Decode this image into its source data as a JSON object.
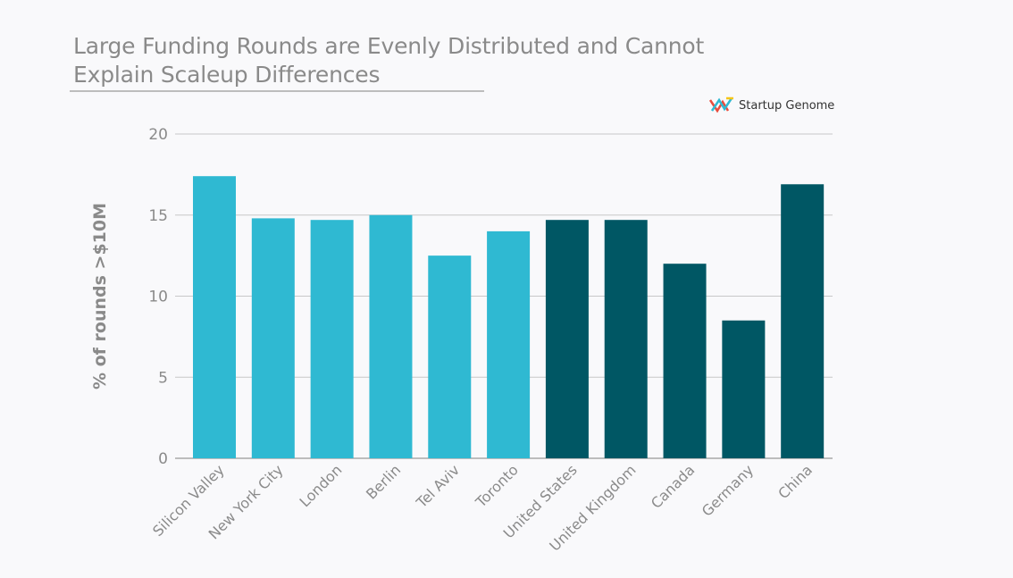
{
  "title": "Large Funding Rounds are Evenly Distributed and Cannot Explain Scaleup Differences",
  "brand": {
    "name": "Startup Genome",
    "icon": "startup-genome-logo-icon"
  },
  "colors": {
    "city": "#2fb9d2",
    "country": "#005764",
    "grid": "#c8c8c8",
    "axis": "#bdbdbd"
  },
  "chart_data": {
    "type": "bar",
    "categories": [
      "Silicon Valley",
      "New York City",
      "London",
      "Berlin",
      "Tel Aviv",
      "Toronto",
      "United States",
      "United Kingdom",
      "Canada",
      "Germany",
      "China"
    ],
    "values": [
      17.4,
      14.8,
      14.7,
      15.0,
      12.5,
      14.0,
      14.7,
      14.7,
      12.0,
      8.5,
      16.9
    ],
    "groups": [
      "city",
      "city",
      "city",
      "city",
      "city",
      "city",
      "country",
      "country",
      "country",
      "country",
      "country"
    ],
    "ylabel": "% of rounds >$10M",
    "xlabel": "",
    "ylim": [
      0,
      20
    ],
    "yticks": [
      0,
      5,
      10,
      15,
      20
    ],
    "grid": true
  }
}
